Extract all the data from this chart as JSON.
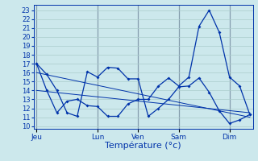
{
  "background_color": "#cce8ec",
  "grid_color": "#aacccc",
  "line_color": "#0033aa",
  "xlabel": "Température (°c)",
  "xlabel_fontsize": 8,
  "ytick_labels": [
    "10",
    "11",
    "12",
    "13",
    "14",
    "15",
    "16",
    "17",
    "18",
    "19",
    "20",
    "21",
    "22",
    "23"
  ],
  "ytick_values": [
    10,
    11,
    12,
    13,
    14,
    15,
    16,
    17,
    18,
    19,
    20,
    21,
    22,
    23
  ],
  "ylim": [
    9.7,
    23.6
  ],
  "x_day_labels": [
    "Jeu",
    "Lun",
    "Ven",
    "Sam",
    "Dim"
  ],
  "x_day_positions": [
    0,
    6,
    10,
    14,
    19
  ],
  "xlim": [
    -0.3,
    21.3
  ],
  "series_main_x": [
    0,
    1,
    2,
    3,
    4,
    5,
    6,
    7,
    8,
    9,
    10,
    11,
    12,
    13,
    14,
    15,
    16,
    17,
    18,
    19,
    20,
    21
  ],
  "series_main_y": [
    17.0,
    15.8,
    14.0,
    11.5,
    11.1,
    16.1,
    15.5,
    16.6,
    16.5,
    15.3,
    15.3,
    11.1,
    12.0,
    13.0,
    14.4,
    14.5,
    15.4,
    13.8,
    11.7,
    10.3,
    10.7,
    11.3
  ],
  "series2_x": [
    0,
    1,
    2,
    3,
    4,
    5,
    6,
    7,
    8,
    9,
    10,
    11,
    12,
    13,
    14,
    15,
    16,
    17,
    18,
    19,
    20,
    21
  ],
  "series2_y": [
    17.0,
    14.0,
    11.5,
    12.8,
    13.0,
    12.3,
    12.2,
    11.1,
    11.1,
    12.5,
    13.0,
    13.0,
    14.5,
    15.4,
    14.5,
    15.5,
    21.2,
    23.0,
    20.5,
    15.5,
    14.5,
    11.3
  ],
  "trend1_x": [
    0,
    21
  ],
  "trend1_y": [
    16.0,
    11.0
  ],
  "trend2_x": [
    0,
    21
  ],
  "trend2_y": [
    14.0,
    11.5
  ],
  "sep_line_color": "#333366",
  "tick_color": "#0033aa",
  "tick_fontsize": 6,
  "marker": "D",
  "markersize": 2.0,
  "linewidth": 0.9
}
